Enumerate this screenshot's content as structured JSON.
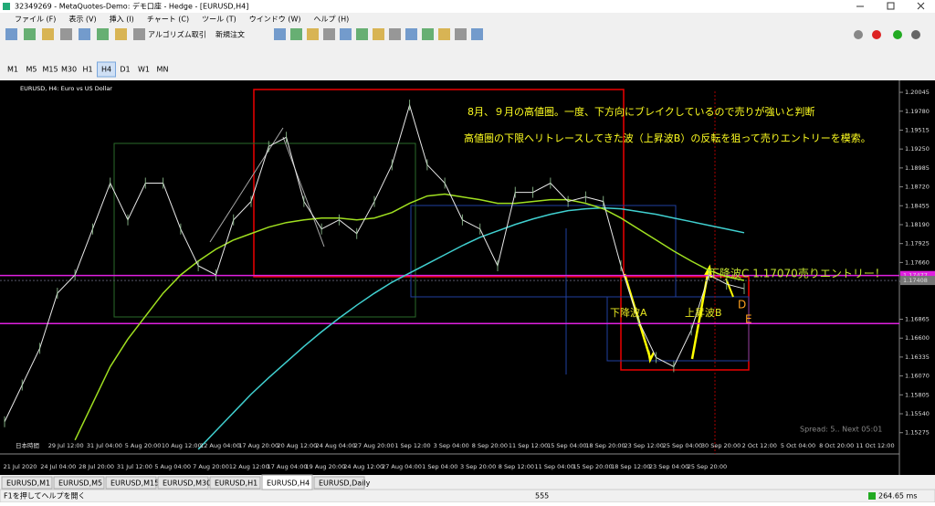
{
  "window": {
    "title": "32349269 - MetaQuotes-Demo: デモ口座 - Hedge - [EURUSD,H4]",
    "menu": [
      "ファイル (F)",
      "表示 (V)",
      "挿入 (I)",
      "チャート (C)",
      "ツール (T)",
      "ウインドウ (W)",
      "ヘルプ (H)"
    ],
    "toolbar": [
      "アルゴリズム取引",
      "新規注文"
    ],
    "timeframes": [
      "M1",
      "M5",
      "M15",
      "M30",
      "H1",
      "H4",
      "D1",
      "W1",
      "MN"
    ]
  },
  "chart": {
    "label": "EURUSD, H4:  Euro vs US Dollar",
    "ylim": [
      1.14977,
      1.20212
    ],
    "yticks": [
      {
        "value": 1.20045,
        "label": "1.20045"
      },
      {
        "value": 1.1978,
        "label": "1.19780"
      },
      {
        "value": 1.19515,
        "label": "1.19515"
      },
      {
        "value": 1.1925,
        "label": "1.19250"
      },
      {
        "value": 1.18985,
        "label": "1.18985"
      },
      {
        "value": 1.1872,
        "label": "1.18720"
      },
      {
        "value": 1.18455,
        "label": "1.18455"
      },
      {
        "value": 1.1819,
        "label": "1.18190"
      },
      {
        "value": 1.17925,
        "label": "1.17925"
      },
      {
        "value": 1.1766,
        "label": "1.17660"
      },
      {
        "value": 1.17395,
        "label": "1.17395"
      },
      {
        "value": 1.16865,
        "label": "1.16865"
      },
      {
        "value": 1.166,
        "label": "1.16600"
      },
      {
        "value": 1.16335,
        "label": "1.16335"
      },
      {
        "value": 1.1607,
        "label": "1.16070"
      },
      {
        "value": 1.15805,
        "label": "1.15805"
      },
      {
        "value": 1.1554,
        "label": "1.15540"
      },
      {
        "value": 1.15275,
        "label": "1.15275"
      }
    ],
    "price": [
      1.15428,
      1.15943,
      1.16457,
      1.17229,
      1.17486,
      1.18129,
      1.18772,
      1.18257,
      1.18772,
      1.18772,
      1.18129,
      1.17614,
      1.17486,
      1.18257,
      1.18515,
      1.19286,
      1.19415,
      1.18515,
      1.18129,
      1.18257,
      1.18065,
      1.18515,
      1.19029,
      1.19865,
      1.19029,
      1.18772,
      1.18257,
      1.18129,
      1.17614,
      1.18643,
      1.18643,
      1.18772,
      1.18515,
      1.18579,
      1.18515,
      1.17614,
      1.16843,
      1.16328,
      1.162,
      1.16714,
      1.17486,
      1.17357,
      1.17293
    ],
    "ma_mid": [
      null,
      null,
      null,
      null,
      1.15171,
      1.15685,
      1.162,
      1.16586,
      1.16907,
      1.17229,
      1.17486,
      1.17679,
      1.17846,
      1.17975,
      1.18065,
      1.18155,
      1.18219,
      1.18257,
      1.18283,
      1.18283,
      1.18257,
      1.18283,
      1.1836,
      1.18489,
      1.18592,
      1.18618,
      1.18579,
      1.1854,
      1.18489,
      1.18489,
      1.18515,
      1.1854,
      1.1854,
      1.18489,
      1.18412,
      1.18283,
      1.18129,
      1.17975,
      1.1782,
      1.17679,
      1.1755,
      1.1746,
      1.17409
    ],
    "ma_slow": [
      null,
      null,
      null,
      null,
      null,
      null,
      null,
      null,
      null,
      null,
      null,
      1.15042,
      1.153,
      1.15557,
      1.15814,
      1.16045,
      1.16264,
      1.16483,
      1.16689,
      1.16881,
      1.17061,
      1.17229,
      1.17383,
      1.17512,
      1.1764,
      1.17769,
      1.17897,
      1.18013,
      1.18103,
      1.18193,
      1.1827,
      1.18335,
      1.18386,
      1.18412,
      1.18425,
      1.18412,
      1.18373,
      1.18335,
      1.18283,
      1.18232,
      1.1818,
      1.18129,
      1.18077
    ],
    "levels": [
      {
        "value": 1.17477,
        "label": "1.17477"
      },
      {
        "value": 1.16804
      }
    ],
    "marker": {
      "value": 1.17408,
      "label": "1.17408"
    },
    "time_row1": [
      "日本時間",
      "29 Jul 12:00",
      "31 Jul 04:00",
      "5 Aug 20:00",
      "10 Aug 12:00",
      "12 Aug 04:00",
      "17 Aug 20:00",
      "20 Aug 12:00",
      "24 Aug 04:00",
      "27 Aug 20:00",
      "1 Sep 12:00",
      "3 Sep 04:00",
      "8 Sep 20:00",
      "11 Sep 12:00",
      "15 Sep 04:00",
      "18 Sep 20:00",
      "23 Sep 12:00",
      "25 Sep 04:00",
      "30 Sep 20:00",
      "2 Oct 12:00",
      "5 Oct 04:00",
      "8 Oct 20:00",
      "11 Oct 12:00"
    ],
    "time_row2": [
      "21 Jul 2020",
      "24 Jul 04:00",
      "28 Jul 20:00",
      "31 Jul 12:00",
      "5 Aug 04:00",
      "7 Aug 20:00",
      "12 Aug 12:00",
      "17 Aug 04:00",
      "19 Aug 20:00",
      "24 Aug 12:00",
      "27 Aug 04:00",
      "1 Sep 04:00",
      "3 Sep 20:00",
      "8 Sep 12:00",
      "11 Sep 04:00",
      "15 Sep 20:00",
      "18 Sep 12:00",
      "23 Sep 04:00",
      "25 Sep 20:00"
    ],
    "notes": [
      "8月、９月の高値圏。一度、下方向にブレイクしているので売りが強いと判断",
      "高値圏の下限へリトレースしてきた波（上昇波B）の反転を狙って売りエントリーを模索。"
    ],
    "wave_labels": [
      "下降波A",
      "上昇波B",
      "下降波C 1.17070売りエントリー！",
      "D",
      "E"
    ],
    "spread": "Spread: 5.. Next 05:01"
  },
  "tabs": [
    "EURUSD,M1",
    "EURUSD,M5",
    "EURUSD,M15",
    "EURUSD,M30",
    "EURUSD,H1",
    "EURUSD,H4",
    "EURUSD,Daily"
  ],
  "status": [
    "F1を押してヘルプを開く",
    "555",
    "264.65 ms"
  ]
}
